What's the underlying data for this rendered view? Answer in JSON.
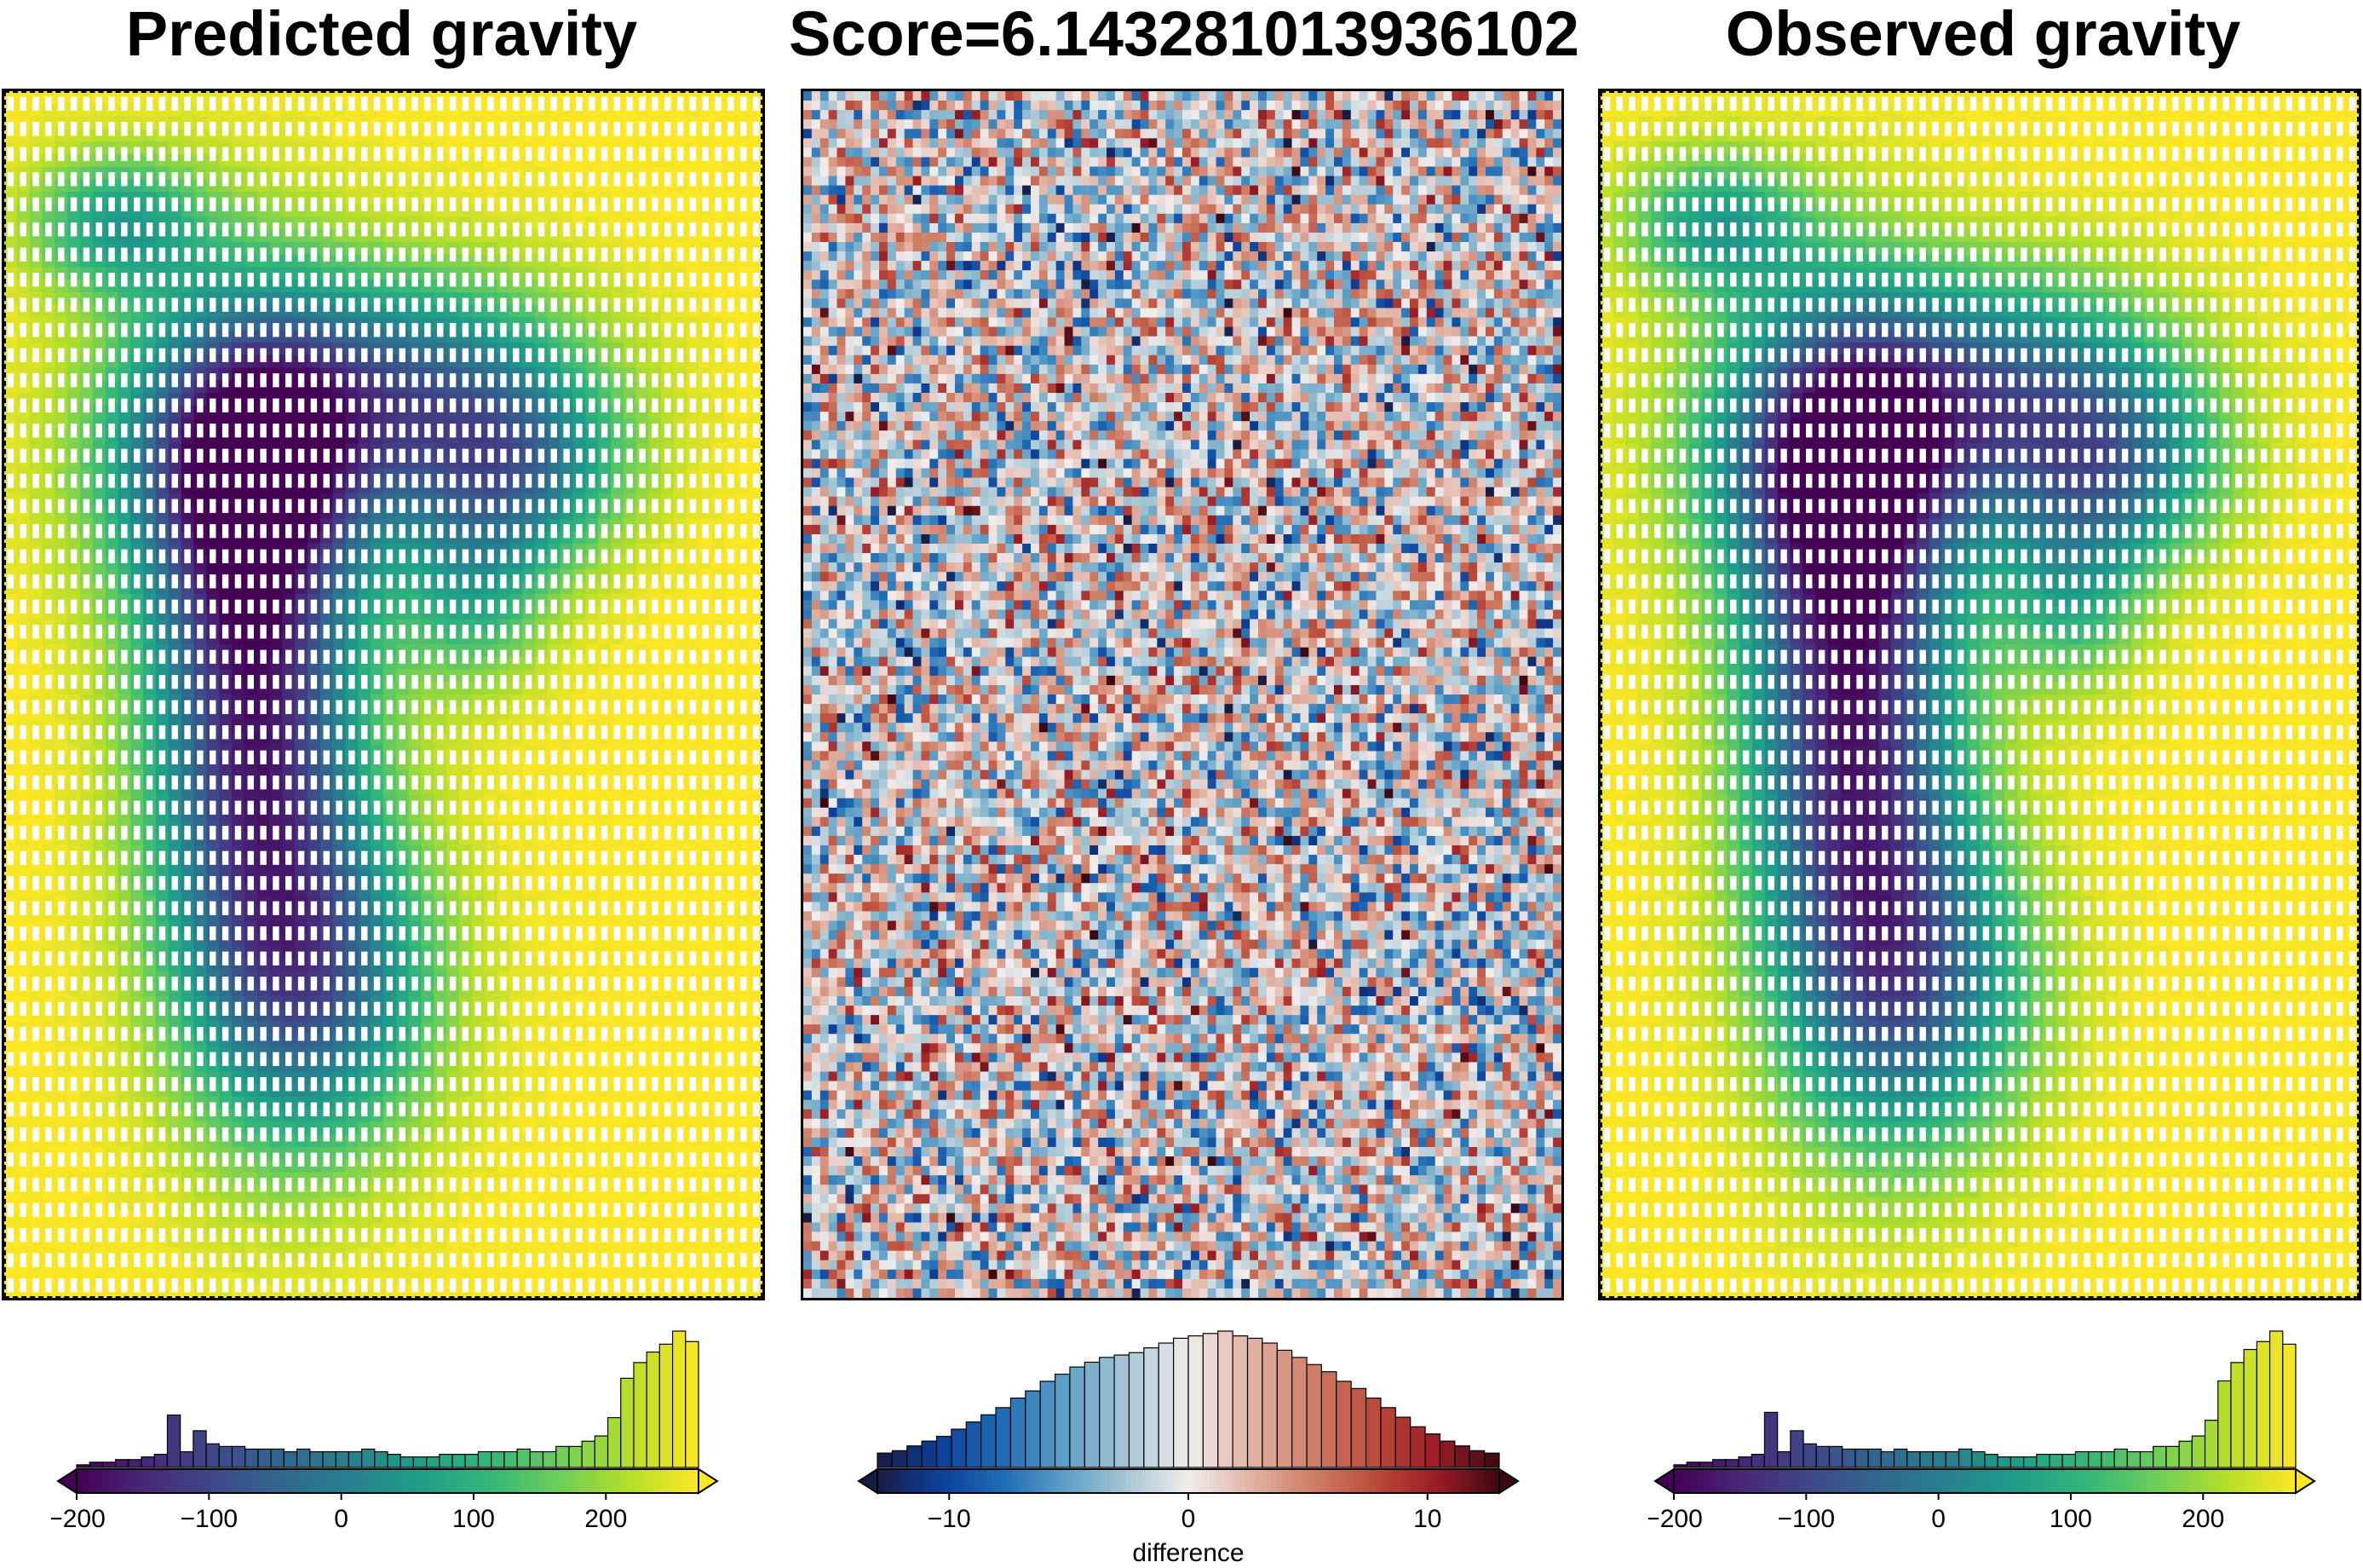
{
  "titles": {
    "left": "Predicted gravity",
    "middle": "Score=6.143281013936102",
    "right": "Observed gravity"
  },
  "colors": {
    "viridis": [
      "#440154",
      "#482878",
      "#3e4989",
      "#31688e",
      "#26828e",
      "#1f9e89",
      "#35b779",
      "#6ece58",
      "#b5de2b",
      "#fde725"
    ],
    "balance": [
      "#181c43",
      "#0c3f98",
      "#1f6bb5",
      "#5b9ec6",
      "#a7c6d4",
      "#f1eded",
      "#e2b3a4",
      "#cf7e66",
      "#bb4a3a",
      "#9a1c27",
      "#3c0912"
    ]
  },
  "chart_data": [
    {
      "type": "heatmap",
      "panel": "predicted",
      "title": "Predicted gravity",
      "colormap": "viridis",
      "value_range": [
        -200,
        270
      ],
      "colorbar": {
        "ticks": [
          -200,
          -100,
          0,
          100,
          200
        ],
        "tick_labels": [
          "−200",
          "−100",
          "0",
          "100",
          "200"
        ],
        "label": "",
        "histogram": [
          1,
          2,
          2,
          3,
          3,
          4,
          5,
          20,
          6,
          14,
          9,
          8,
          8,
          7,
          7,
          7,
          6,
          7,
          6,
          6,
          6,
          6,
          7,
          6,
          5,
          4,
          4,
          4,
          5,
          5,
          5,
          6,
          6,
          6,
          7,
          6,
          6,
          8,
          8,
          10,
          12,
          19,
          34,
          40,
          44,
          47,
          52,
          48
        ]
      }
    },
    {
      "type": "heatmap",
      "panel": "difference",
      "title": "Score=6.143281013936102",
      "colormap": "balance",
      "value_range": [
        -13,
        13
      ],
      "colorbar": {
        "ticks": [
          -10,
          0,
          10
        ],
        "tick_labels": [
          "−10",
          "0",
          "10"
        ],
        "label": "difference",
        "histogram": [
          6,
          7,
          9,
          11,
          13,
          16,
          19,
          22,
          25,
          29,
          32,
          36,
          39,
          42,
          44,
          46,
          47,
          48,
          50,
          52,
          54,
          55,
          56,
          57,
          55,
          54,
          52,
          49,
          46,
          43,
          40,
          36,
          33,
          29,
          25,
          21,
          17,
          14,
          11,
          9,
          7,
          6
        ]
      }
    },
    {
      "type": "heatmap",
      "panel": "observed",
      "title": "Observed gravity",
      "colormap": "viridis",
      "value_range": [
        -200,
        270
      ],
      "colorbar": {
        "ticks": [
          -200,
          -100,
          0,
          100,
          200
        ],
        "tick_labels": [
          "−200",
          "−100",
          "0",
          "100",
          "200"
        ],
        "label": "",
        "histogram": [
          1,
          2,
          2,
          3,
          3,
          4,
          5,
          21,
          6,
          14,
          9,
          8,
          8,
          7,
          7,
          7,
          6,
          7,
          6,
          6,
          6,
          6,
          7,
          6,
          5,
          4,
          4,
          4,
          5,
          5,
          5,
          6,
          6,
          6,
          7,
          6,
          6,
          8,
          8,
          10,
          12,
          18,
          33,
          40,
          45,
          48,
          52,
          47
        ]
      }
    }
  ]
}
